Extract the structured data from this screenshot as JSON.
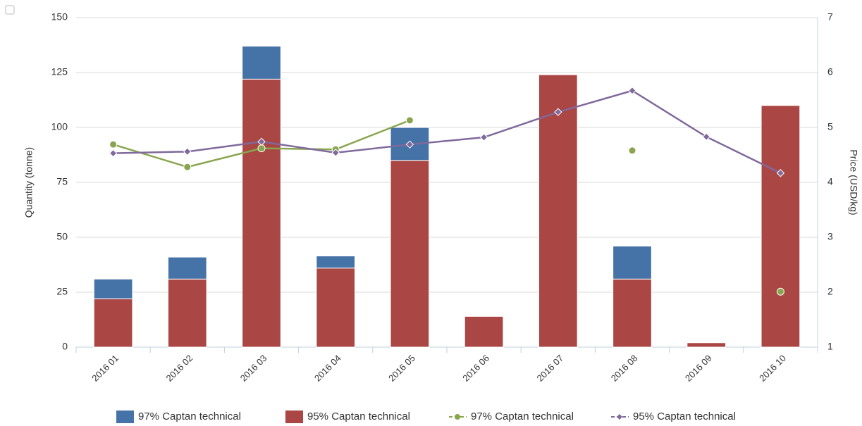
{
  "chart_data": {
    "type": "bar",
    "categories": [
      "2016 01",
      "2016 02",
      "2016 03",
      "2016 04",
      "2016 05",
      "2016 06",
      "2016 07",
      "2016 08",
      "2016 09",
      "2016 10"
    ],
    "y_label": "Quantity (tonne)",
    "y2_label": "Price (USD/kg)",
    "ylim": [
      0,
      150
    ],
    "yticks": [
      0,
      25,
      50,
      75,
      100,
      125,
      150
    ],
    "y2lim": [
      1,
      7
    ],
    "y2ticks": [
      1,
      2,
      3,
      4,
      5,
      6,
      7
    ],
    "grid": true,
    "legend": "bottom",
    "series": [
      {
        "name": "95% Captan technical",
        "type": "bar",
        "stack": true,
        "color": "#aa4643",
        "values": [
          22,
          31,
          122,
          36,
          85,
          14,
          124,
          31,
          2,
          110
        ]
      },
      {
        "name": "97% Captan technical",
        "type": "bar",
        "stack": true,
        "color": "#4572a7",
        "values": [
          9,
          10,
          15,
          5.5,
          15,
          null,
          null,
          15,
          null,
          null
        ]
      },
      {
        "name": "97% Captan technical",
        "type": "line",
        "axis": "y2",
        "color": "#89a54e",
        "marker": "circle",
        "values": [
          4.69,
          4.28,
          4.62,
          4.6,
          5.13,
          null,
          null,
          4.58,
          null,
          2.01
        ]
      },
      {
        "name": "95% Captan technical",
        "type": "line",
        "axis": "y2",
        "color": "#80699b",
        "marker": "diamond",
        "values": [
          4.53,
          4.56,
          4.74,
          4.54,
          4.69,
          4.82,
          5.28,
          5.67,
          4.83,
          4.17
        ]
      }
    ],
    "legend_order": [
      1,
      0,
      2,
      3
    ]
  }
}
